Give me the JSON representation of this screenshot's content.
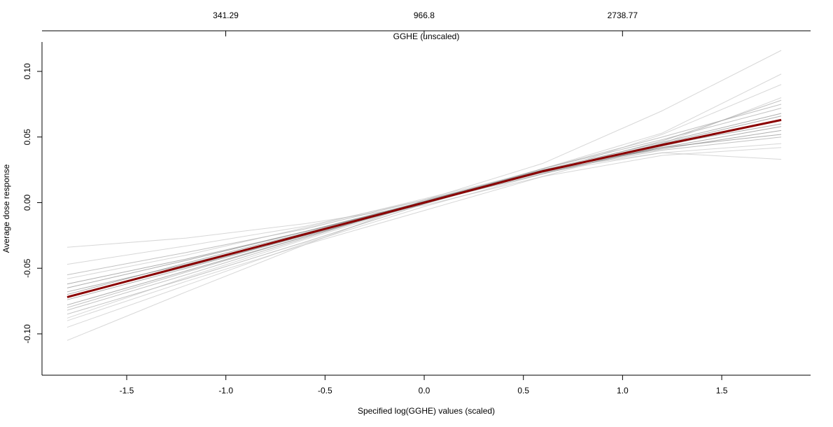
{
  "chart_data": {
    "type": "line",
    "x_label": "Specified log(GGHE) values (scaled)",
    "y_label": "Average dose response",
    "x2_label": "GGHE (unscaled)",
    "x": [
      -1.8,
      -1.2,
      -0.6,
      0,
      0.6,
      1.2,
      1.8
    ],
    "series": [
      {
        "color": "#bdbdbd",
        "values": [
          -0.105,
          -0.068,
          -0.032,
          0.002,
          0.03,
          0.07,
          0.116
        ]
      },
      {
        "color": "#bdbdbd",
        "values": [
          -0.034,
          -0.027,
          -0.016,
          -0.002,
          0.02,
          0.036,
          0.042
        ]
      },
      {
        "color": "#9a9a9a",
        "values": [
          -0.085,
          -0.058,
          -0.03,
          -0.001,
          0.026,
          0.05,
          0.075
        ]
      },
      {
        "color": "#7a7a7a",
        "values": [
          -0.065,
          -0.044,
          -0.022,
          0.001,
          0.023,
          0.042,
          0.058
        ]
      },
      {
        "color": "#7a7a7a",
        "values": [
          -0.078,
          -0.052,
          -0.026,
          0.0,
          0.025,
          0.046,
          0.068
        ]
      },
      {
        "color": "#9a9a9a",
        "values": [
          -0.055,
          -0.038,
          -0.02,
          0.002,
          0.024,
          0.04,
          0.05
        ]
      },
      {
        "color": "#bdbdbd",
        "values": [
          -0.095,
          -0.063,
          -0.031,
          -0.003,
          0.022,
          0.052,
          0.09
        ]
      },
      {
        "color": "#7a7a7a",
        "values": [
          -0.07,
          -0.046,
          -0.023,
          0.001,
          0.025,
          0.041,
          0.055
        ]
      },
      {
        "color": "#bdbdbd",
        "values": [
          -0.088,
          -0.057,
          -0.028,
          0.0,
          0.026,
          0.053,
          0.098
        ]
      },
      {
        "color": "#bdbdbd",
        "values": [
          -0.047,
          -0.033,
          -0.018,
          0.002,
          0.023,
          0.038,
          0.045
        ]
      },
      {
        "color": "#7a7a7a",
        "values": [
          -0.062,
          -0.043,
          -0.022,
          0.0,
          0.022,
          0.043,
          0.063
        ]
      },
      {
        "color": "#9a9a9a",
        "values": [
          -0.082,
          -0.055,
          -0.027,
          0.001,
          0.026,
          0.048,
          0.072
        ]
      },
      {
        "color": "#bdbdbd",
        "values": [
          -0.09,
          -0.06,
          -0.032,
          -0.006,
          0.02,
          0.045,
          0.08
        ]
      },
      {
        "color": "#7a7a7a",
        "values": [
          -0.074,
          -0.05,
          -0.025,
          -0.001,
          0.024,
          0.044,
          0.06
        ]
      },
      {
        "color": "#bdbdbd",
        "values": [
          -0.058,
          -0.04,
          -0.019,
          0.003,
          0.025,
          0.038,
          0.033
        ]
      },
      {
        "color": "#7a7a7a",
        "values": [
          -0.068,
          -0.047,
          -0.024,
          0.0,
          0.024,
          0.045,
          0.066
        ]
      },
      {
        "color": "#9a9a9a",
        "values": [
          -0.08,
          -0.053,
          -0.026,
          0.0,
          0.023,
          0.047,
          0.078
        ]
      },
      {
        "color": "#7a7a7a",
        "values": [
          -0.072,
          -0.049,
          -0.025,
          0.001,
          0.025,
          0.042,
          0.052
        ]
      },
      {
        "color": "#8b0000",
        "values": [
          -0.072,
          -0.048,
          -0.024,
          0.0,
          0.024,
          0.044,
          0.063
        ]
      }
    ],
    "xlim": [
      -1.927,
      1.948
    ],
    "xticks": [
      -1.5,
      {
        "value": -1,
        "label": "-1.0"
      },
      -0.5,
      {
        "value": 0,
        "label": "0.0"
      },
      0.5,
      {
        "value": 1,
        "label": "1.0"
      },
      1.5
    ],
    "ylim": [
      -0.1315,
      0.1224
    ],
    "yticks": [
      {
        "value": -0.1,
        "label": "-0.10"
      },
      -0.05,
      {
        "value": 0,
        "label": "0.00"
      },
      0.05,
      {
        "value": 0.1,
        "label": "0.10"
      }
    ],
    "x2lim": [
      130.1,
      7350
    ],
    "x2log": true,
    "x2ticks": [
      341.29,
      966.8,
      2738.77
    ],
    "grid": false
  }
}
